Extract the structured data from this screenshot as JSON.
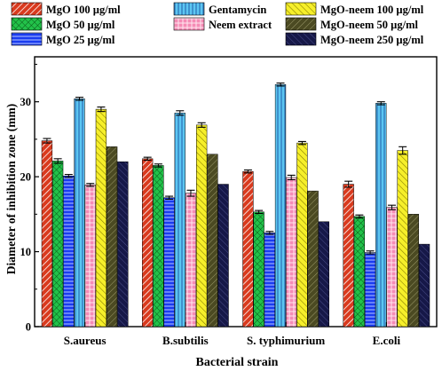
{
  "chart_data": {
    "type": "bar",
    "xlabel": "Bacterial strain",
    "ylabel": "Diameter of inhibition zone (mm)",
    "ylim": [
      0,
      36
    ],
    "yticks": [
      0,
      10,
      20,
      30
    ],
    "categories": [
      "S.aureus",
      "B.subtilis",
      "S. typhimurium",
      "E.coli"
    ],
    "legend_position": "top",
    "series": [
      {
        "name": "MgO 100 µg/ml",
        "color": "#d93a1e",
        "pattern": "diag-right",
        "values": [
          24.8,
          22.4,
          20.7,
          19.0
        ],
        "errors": [
          0.3,
          0.2,
          0.2,
          0.4
        ]
      },
      {
        "name": "MgO 50 µg/ml",
        "color": "#22c24a",
        "pattern": "crosshatch",
        "values": [
          22.1,
          21.5,
          15.3,
          14.7
        ],
        "errors": [
          0.3,
          0.2,
          0.2,
          0.2
        ]
      },
      {
        "name": "MgO 25 µg/ml",
        "color": "#1a3cf0",
        "pattern": "horizontal",
        "values": [
          20.1,
          17.2,
          12.5,
          9.9
        ],
        "errors": [
          0.2,
          0.2,
          0.2,
          0.2
        ]
      },
      {
        "name": "Gentamycin",
        "color": "#5cc6f2",
        "pattern": "vertical",
        "values": [
          30.4,
          28.5,
          32.3,
          29.8
        ],
        "errors": [
          0.2,
          0.3,
          0.2,
          0.2
        ]
      },
      {
        "name": "Neem extract",
        "color": "#f58bb5",
        "pattern": "grid",
        "values": [
          18.9,
          17.8,
          19.9,
          15.9
        ],
        "errors": [
          0.2,
          0.4,
          0.3,
          0.3
        ]
      },
      {
        "name": "MgO-neem 100 µg/ml",
        "color": "#f6ef2a",
        "pattern": "diag-left",
        "values": [
          29.0,
          26.9,
          24.5,
          23.5
        ],
        "errors": [
          0.3,
          0.3,
          0.2,
          0.5
        ]
      },
      {
        "name": "MgO-neem 50 µg/ml",
        "color": "#4b4a22",
        "pattern": "diag-right-light",
        "values": [
          24.0,
          23.0,
          18.1,
          15.0
        ],
        "errors": [
          0,
          0,
          0,
          0
        ]
      },
      {
        "name": "MgO-neem 250 µg/ml",
        "color": "#161848",
        "pattern": "diag-left-light",
        "values": [
          22.0,
          19.0,
          14.0,
          11.0
        ],
        "errors": [
          0,
          0,
          0,
          0
        ]
      }
    ]
  }
}
